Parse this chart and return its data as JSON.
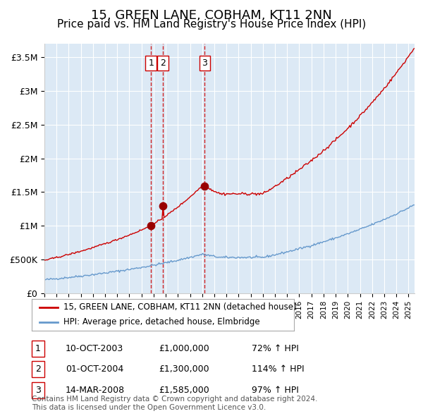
{
  "title": "15, GREEN LANE, COBHAM, KT11 2NN",
  "subtitle": "Price paid vs. HM Land Registry's House Price Index (HPI)",
  "title_fontsize": 13,
  "subtitle_fontsize": 11,
  "background_color": "#ffffff",
  "plot_bg_color": "#dce9f5",
  "grid_color": "#ffffff",
  "ylim": [
    0,
    3700000
  ],
  "yticks": [
    0,
    500000,
    1000000,
    1500000,
    2000000,
    2500000,
    3000000,
    3500000
  ],
  "ytick_labels": [
    "£0",
    "£500K",
    "£1M",
    "£1.5M",
    "£2M",
    "£2.5M",
    "£3M",
    "£3.5M"
  ],
  "red_line_color": "#cc0000",
  "blue_line_color": "#6699cc",
  "sale_marker_color": "#990000",
  "vline_color": "#cc0000",
  "sales": [
    {
      "label": "1",
      "date": 2003.78,
      "price": 1000000
    },
    {
      "label": "2",
      "date": 2004.75,
      "price": 1300000
    },
    {
      "label": "3",
      "date": 2008.2,
      "price": 1585000
    }
  ],
  "legend_red_label": "15, GREEN LANE, COBHAM, KT11 2NN (detached house)",
  "legend_blue_label": "HPI: Average price, detached house, Elmbridge",
  "table_rows": [
    {
      "num": "1",
      "date": "10-OCT-2003",
      "price": "£1,000,000",
      "hpi": "72% ↑ HPI"
    },
    {
      "num": "2",
      "date": "01-OCT-2004",
      "price": "£1,300,000",
      "hpi": "114% ↑ HPI"
    },
    {
      "num": "3",
      "date": "14-MAR-2008",
      "price": "£1,585,000",
      "hpi": "97% ↑ HPI"
    }
  ],
  "footer": "Contains HM Land Registry data © Crown copyright and database right 2024.\nThis data is licensed under the Open Government Licence v3.0.",
  "xstart": 1995.0,
  "xend": 2025.5
}
